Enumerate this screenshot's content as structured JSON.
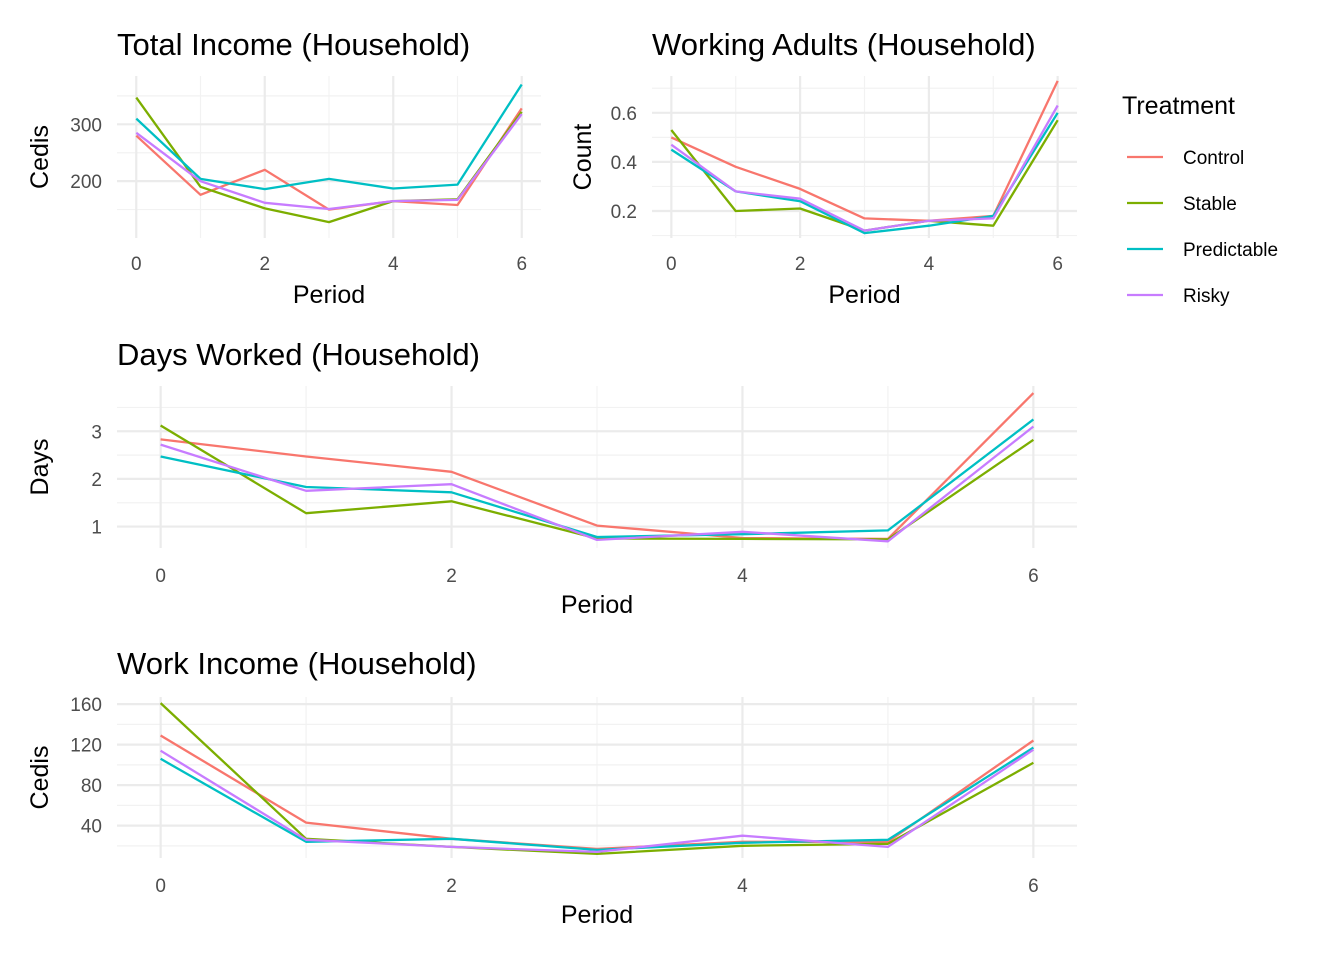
{
  "chart_data": [
    {
      "id": "total-income",
      "type": "line",
      "title": "Total Income (Household)",
      "xlabel": "Period",
      "ylabel": "Cedis",
      "x": [
        0,
        1,
        2,
        3,
        4,
        5,
        6
      ],
      "xlim": [
        -0.3,
        6.3
      ],
      "ylim": [
        100,
        385
      ],
      "xticks": [
        0,
        2,
        4,
        6
      ],
      "yticks": [
        200,
        300
      ],
      "ytick_labels": [
        "200",
        "300"
      ],
      "series": [
        {
          "name": "Control",
          "values": [
            280,
            176,
            220,
            150,
            165,
            158,
            328
          ]
        },
        {
          "name": "Stable",
          "values": [
            347,
            190,
            152,
            128,
            165,
            168,
            322
          ]
        },
        {
          "name": "Predictable",
          "values": [
            310,
            204,
            186,
            204,
            187,
            194,
            370
          ]
        },
        {
          "name": "Risky",
          "values": [
            285,
            200,
            162,
            151,
            165,
            167,
            318
          ]
        }
      ]
    },
    {
      "id": "working-adults",
      "type": "line",
      "title": "Working Adults (Household)",
      "xlabel": "Period",
      "ylabel": "Count",
      "x": [
        0,
        1,
        2,
        3,
        4,
        5,
        6
      ],
      "xlim": [
        -0.3,
        6.3
      ],
      "ylim": [
        0.09,
        0.75
      ],
      "xticks": [
        0,
        2,
        4,
        6
      ],
      "yticks": [
        0.2,
        0.4,
        0.6
      ],
      "ytick_labels": [
        "0.2",
        "0.4",
        "0.6"
      ],
      "series": [
        {
          "name": "Control",
          "values": [
            0.5,
            0.38,
            0.29,
            0.17,
            0.16,
            0.18,
            0.73
          ]
        },
        {
          "name": "Stable",
          "values": [
            0.53,
            0.2,
            0.21,
            0.12,
            0.16,
            0.14,
            0.57
          ]
        },
        {
          "name": "Predictable",
          "values": [
            0.45,
            0.28,
            0.24,
            0.11,
            0.14,
            0.18,
            0.6
          ]
        },
        {
          "name": "Risky",
          "values": [
            0.47,
            0.28,
            0.25,
            0.12,
            0.16,
            0.17,
            0.63
          ]
        }
      ]
    },
    {
      "id": "days-worked",
      "type": "line",
      "title": "Days Worked (Household)",
      "xlabel": "Period",
      "ylabel": "Days",
      "x": [
        0,
        1,
        2,
        3,
        4,
        5,
        6
      ],
      "xlim": [
        -0.3,
        6.3
      ],
      "ylim": [
        0.55,
        3.95
      ],
      "xticks": [
        0,
        2,
        4,
        6
      ],
      "yticks": [
        1,
        2,
        3
      ],
      "ytick_labels": [
        "1",
        "2",
        "3"
      ],
      "series": [
        {
          "name": "Control",
          "values": [
            2.83,
            2.47,
            2.15,
            1.02,
            0.76,
            0.74,
            3.8
          ]
        },
        {
          "name": "Stable",
          "values": [
            3.12,
            1.28,
            1.53,
            0.75,
            0.74,
            0.73,
            2.82
          ]
        },
        {
          "name": "Predictable",
          "values": [
            2.47,
            1.83,
            1.72,
            0.78,
            0.84,
            0.92,
            3.25
          ]
        },
        {
          "name": "Risky",
          "values": [
            2.72,
            1.75,
            1.89,
            0.72,
            0.89,
            0.69,
            3.1
          ]
        }
      ]
    },
    {
      "id": "work-income",
      "type": "line",
      "title": "Work Income (Household)",
      "xlabel": "Period",
      "ylabel": "Cedis",
      "x": [
        0,
        1,
        2,
        3,
        4,
        5,
        6
      ],
      "xlim": [
        -0.3,
        6.3
      ],
      "ylim": [
        8,
        167
      ],
      "xticks": [
        0,
        2,
        4,
        6
      ],
      "yticks": [
        40,
        80,
        120,
        160
      ],
      "ytick_labels": [
        "40",
        "80",
        "120",
        "160"
      ],
      "series": [
        {
          "name": "Control",
          "values": [
            129,
            43,
            27,
            17,
            24,
            24,
            124
          ]
        },
        {
          "name": "Stable",
          "values": [
            161,
            27,
            19,
            12,
            20,
            22,
            102
          ]
        },
        {
          "name": "Predictable",
          "values": [
            106,
            24,
            27,
            16,
            23,
            26,
            117
          ]
        },
        {
          "name": "Risky",
          "values": [
            114,
            26,
            19,
            14,
            30,
            19,
            115
          ]
        }
      ]
    }
  ],
  "legend": {
    "title": "Treatment",
    "items": [
      {
        "label": "Control",
        "color": "#F8766D"
      },
      {
        "label": "Stable",
        "color": "#7CAE00"
      },
      {
        "label": "Predictable",
        "color": "#00BFC4"
      },
      {
        "label": "Risky",
        "color": "#C77CFF"
      }
    ]
  }
}
